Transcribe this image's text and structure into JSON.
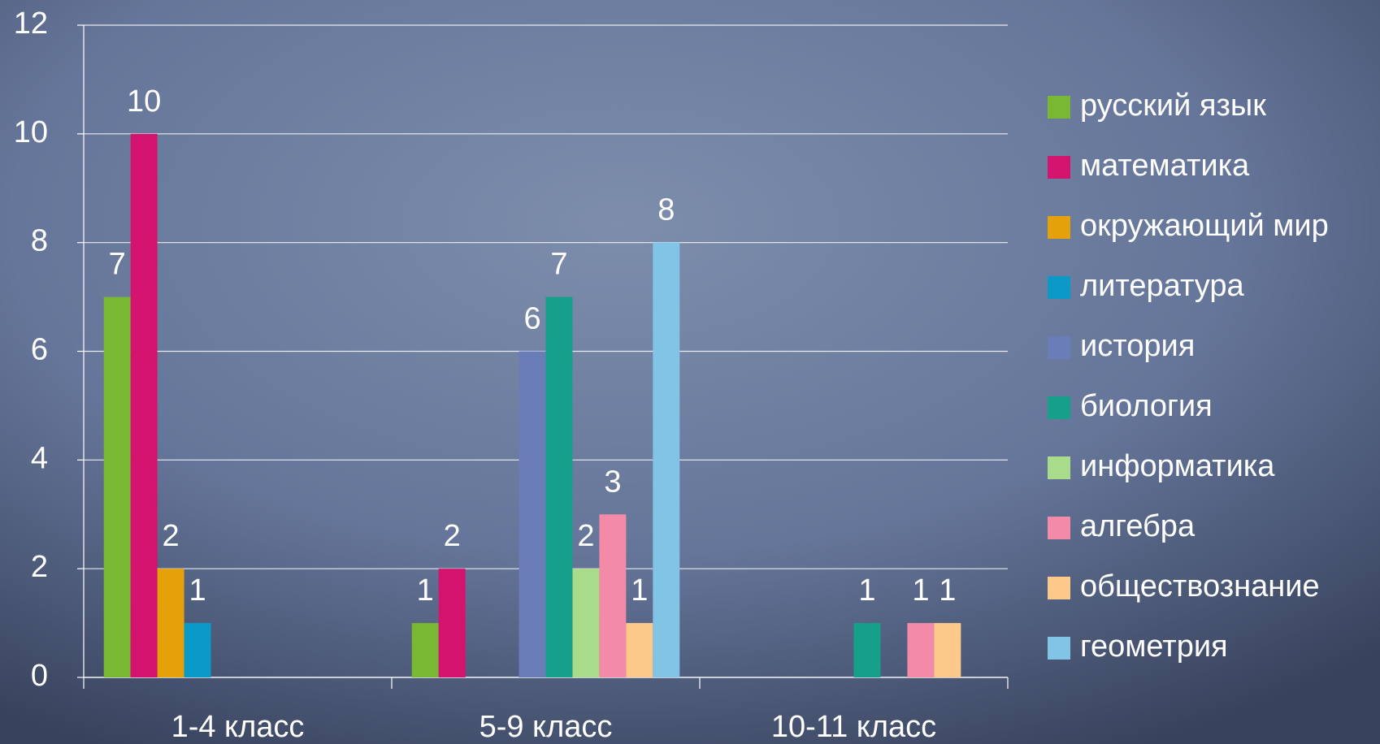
{
  "chart_data": {
    "type": "bar",
    "categories": [
      "1-4 класс",
      "5-9 класс",
      "10-11 класс"
    ],
    "series": [
      {
        "name": "русский язык",
        "color": "#78b832",
        "values": [
          7,
          1,
          null
        ]
      },
      {
        "name": "математика",
        "color": "#d4136e",
        "values": [
          10,
          2,
          null
        ]
      },
      {
        "name": "окружающий мир",
        "color": "#e5a10a",
        "values": [
          2,
          null,
          null
        ]
      },
      {
        "name": "литература",
        "color": "#0b9ac8",
        "values": [
          1,
          null,
          null
        ]
      },
      {
        "name": "история",
        "color": "#6a7db8",
        "values": [
          null,
          6,
          null
        ]
      },
      {
        "name": "биология",
        "color": "#16a08a",
        "values": [
          null,
          7,
          1
        ]
      },
      {
        "name": "информатика",
        "color": "#a8dc8a",
        "values": [
          null,
          2,
          null
        ]
      },
      {
        "name": "алгебра",
        "color": "#f28aa8",
        "values": [
          null,
          3,
          1
        ]
      },
      {
        "name": "обществознание",
        "color": "#fdc98a",
        "values": [
          null,
          1,
          1
        ]
      },
      {
        "name": "геометрия",
        "color": "#82c4e6",
        "values": [
          null,
          8,
          null
        ]
      }
    ],
    "ylim": [
      0,
      12
    ],
    "yticks": [
      0,
      2,
      4,
      6,
      8,
      10,
      12
    ],
    "grid": true,
    "legend": "right"
  }
}
